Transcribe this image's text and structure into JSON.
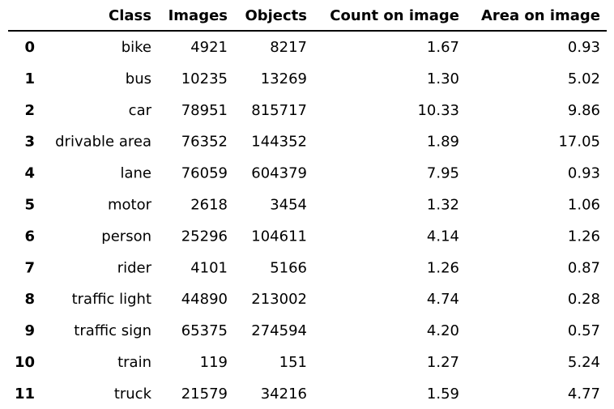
{
  "chart_data": {
    "type": "table",
    "columns": [
      "Class",
      "Images",
      "Objects",
      "Count on image",
      "Area on image"
    ],
    "index": [
      "0",
      "1",
      "2",
      "3",
      "4",
      "5",
      "6",
      "7",
      "8",
      "9",
      "10",
      "11"
    ],
    "rows": [
      [
        "bike",
        "4921",
        "8217",
        "1.67",
        "0.93"
      ],
      [
        "bus",
        "10235",
        "13269",
        "1.30",
        "5.02"
      ],
      [
        "car",
        "78951",
        "815717",
        "10.33",
        "9.86"
      ],
      [
        "drivable area",
        "76352",
        "144352",
        "1.89",
        "17.05"
      ],
      [
        "lane",
        "76059",
        "604379",
        "7.95",
        "0.93"
      ],
      [
        "motor",
        "2618",
        "3454",
        "1.32",
        "1.06"
      ],
      [
        "person",
        "25296",
        "104611",
        "4.14",
        "1.26"
      ],
      [
        "rider",
        "4101",
        "5166",
        "1.26",
        "0.87"
      ],
      [
        "traffic light",
        "44890",
        "213002",
        "4.74",
        "0.28"
      ],
      [
        "traffic sign",
        "65375",
        "274594",
        "4.20",
        "0.57"
      ],
      [
        "train",
        "119",
        "151",
        "1.27",
        "5.24"
      ],
      [
        "truck",
        "21579",
        "34216",
        "1.59",
        "4.77"
      ]
    ]
  },
  "colors": {
    "text": "#000000",
    "rule": "#000000",
    "background": "#ffffff"
  }
}
